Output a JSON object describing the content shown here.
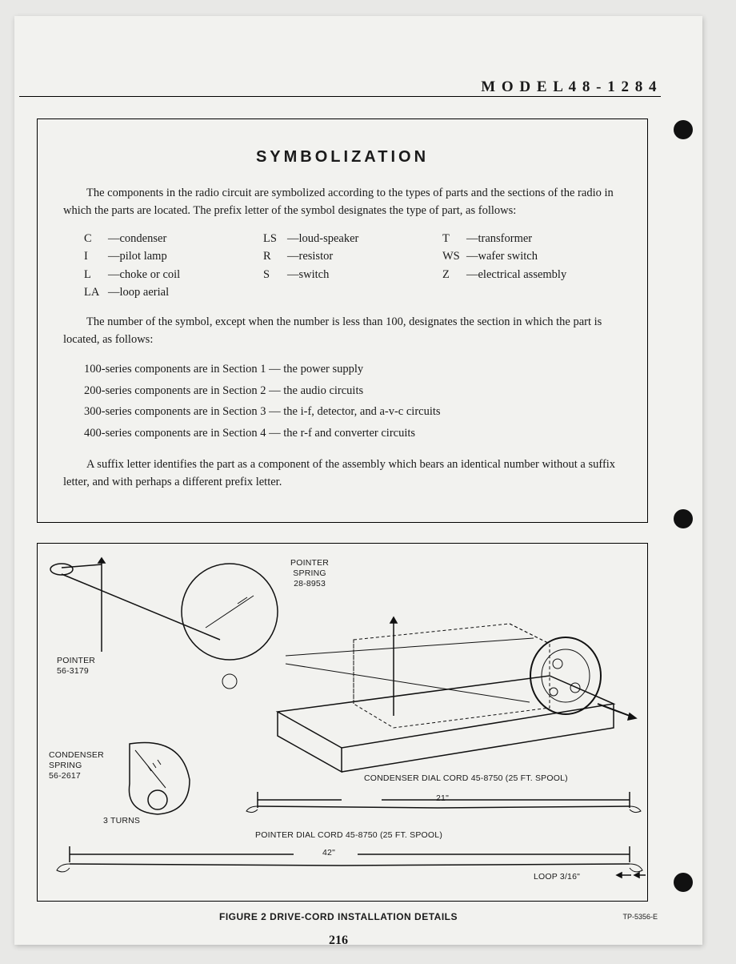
{
  "header": {
    "model_label": "M O D E L   4 8 - 1 2 8 4"
  },
  "symbolization": {
    "title": "SYMBOLIZATION",
    "intro": "The components in the radio circuit are symbolized according to the types of parts and the sections of the radio in which the parts are located. The prefix letter of the symbol designates the type of part, as follows:",
    "prefix_columns": [
      [
        {
          "pre": "C",
          "desc": "—condenser"
        },
        {
          "pre": "I",
          "desc": "—pilot lamp"
        },
        {
          "pre": "L",
          "desc": "—choke or coil"
        },
        {
          "pre": "LA",
          "desc": "—loop aerial"
        }
      ],
      [
        {
          "pre": "LS",
          "desc": "—loud-speaker"
        },
        {
          "pre": "R",
          "desc": "—resistor"
        },
        {
          "pre": "S",
          "desc": "—switch"
        }
      ],
      [
        {
          "pre": "T",
          "desc": "—transformer"
        },
        {
          "pre": "WS",
          "desc": "—wafer switch"
        },
        {
          "pre": "Z",
          "desc": "—electrical assembly"
        }
      ]
    ],
    "series_intro": "The number of the symbol, except when the number is less than 100, designates the section in which the part is located, as follows:",
    "series": [
      "100-series components are in Section 1 — the power supply",
      "200-series components are in Section 2 — the audio circuits",
      "300-series components are in Section 3 — the i-f, detector, and a-v-c circuits",
      "400-series components are in Section 4 — the r-f and converter circuits"
    ],
    "suffix": "A suffix letter identifies the part as a component of the assembly which bears an identical number without a suffix letter, and with perhaps a different prefix letter."
  },
  "figure": {
    "labels": {
      "pointer_spring": "POINTER\nSPRING\n28-8953",
      "pointer": "POINTER\n56-3179",
      "condenser_spring": "CONDENSER\nSPRING\n56-2617",
      "three_turns": "3 TURNS",
      "condenser_cord": "CONDENSER DIAL CORD  45-8750 (25 FT. SPOOL)",
      "pointer_cord": "POINTER DIAL CORD  45-8750 (25 FT. SPOOL)",
      "len21": "21\"",
      "len42": "42\"",
      "loop": "LOOP 3/16\""
    },
    "caption": "FIGURE 2   DRIVE-CORD INSTALLATION DETAILS",
    "tp": "TP-5356-E"
  },
  "page_number": "216",
  "colors": {
    "page_bg": "#f2f2ef",
    "ink": "#1a1a1a"
  }
}
